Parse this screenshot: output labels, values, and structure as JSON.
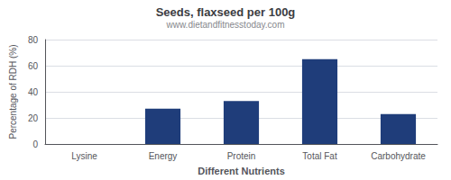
{
  "chart_data": {
    "type": "bar",
    "title": "Seeds, flaxseed per 100g",
    "subtitle": "www.dietandfitnesstoday.com",
    "xlabel": "Different Nutrients",
    "ylabel": "Percentage of RDH (%)",
    "categories": [
      "Lysine",
      "Energy",
      "Protein",
      "Total Fat",
      "Carbohydrate"
    ],
    "values": [
      0,
      27,
      33,
      65,
      23
    ],
    "color": "#1f3d7a",
    "ylim": [
      0,
      80
    ],
    "yticks": [
      0,
      20,
      40,
      60,
      80
    ],
    "grid": true
  }
}
